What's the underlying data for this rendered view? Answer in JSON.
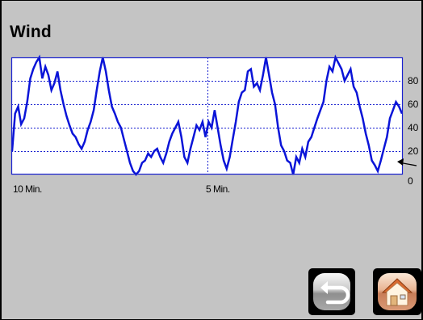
{
  "screen": {
    "title": "Wind"
  },
  "chart_data": {
    "type": "line",
    "title": "",
    "xlabel": "",
    "ylabel": "",
    "x_tick_labels": [
      "10 Min.",
      "5 Min."
    ],
    "y_ticks": [
      "0",
      "20",
      "40",
      "60",
      "80"
    ],
    "ylim": [
      0,
      100
    ],
    "grid": true,
    "line_color": "#0a14d8",
    "frame_color": "#1a22d0",
    "series": [
      {
        "values": [
          20,
          52,
          58,
          43,
          48,
          62,
          82,
          90,
          96,
          100,
          82,
          92,
          85,
          72,
          78,
          88,
          72,
          60,
          50,
          42,
          35,
          32,
          26,
          22,
          28,
          38,
          45,
          55,
          72,
          88,
          100,
          88,
          72,
          58,
          52,
          45,
          40,
          30,
          20,
          10,
          3,
          0,
          3,
          10,
          12,
          18,
          15,
          20,
          22,
          15,
          10,
          18,
          28,
          35,
          40,
          45,
          32,
          15,
          10,
          22,
          32,
          42,
          38,
          45,
          32,
          45,
          40,
          55,
          40,
          25,
          12,
          5,
          15,
          30,
          45,
          62,
          70,
          72,
          88,
          90,
          75,
          78,
          72,
          85,
          100,
          85,
          70,
          60,
          40,
          25,
          20,
          12,
          10,
          0,
          15,
          10,
          22,
          15,
          28,
          32,
          40,
          48,
          55,
          62,
          80,
          92,
          88,
          100,
          95,
          90,
          80,
          85,
          90,
          75,
          70,
          58,
          48,
          35,
          25,
          12,
          8,
          3,
          12,
          22,
          32,
          48,
          55,
          62,
          58,
          52
        ]
      }
    ]
  },
  "buttons": {
    "back_icon": "back-arrow-icon",
    "home_icon": "home-icon"
  }
}
